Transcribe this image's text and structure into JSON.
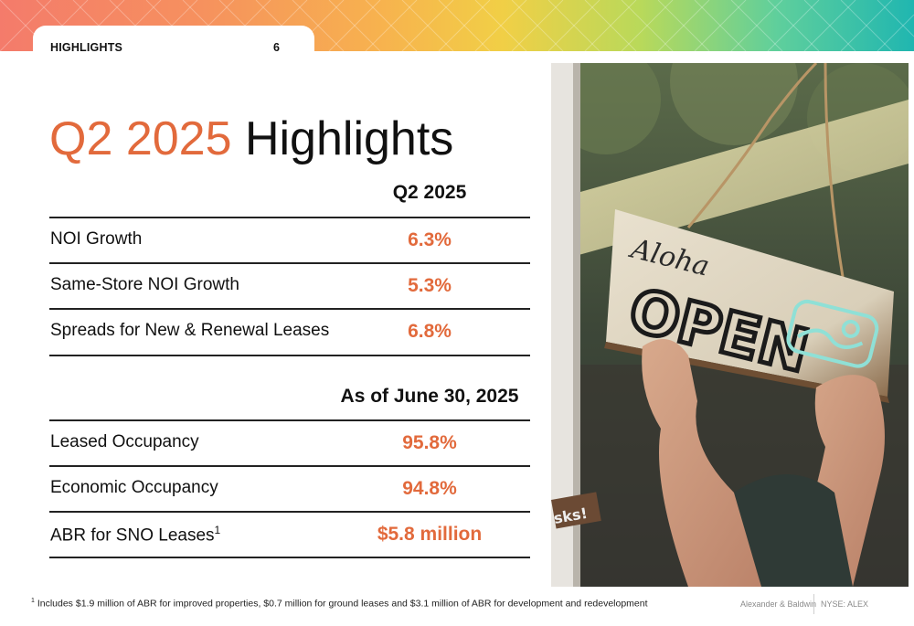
{
  "header": {
    "section_label": "HIGHLIGHTS",
    "page_number": "6",
    "colors": {
      "band_start": "#f47b6b",
      "band_mid": "#f1cf46",
      "band_end": "#20b6b0"
    }
  },
  "title": {
    "accent": "Q2 2025",
    "rest": " Highlights",
    "accent_color": "#e26a3c"
  },
  "quarter_table": {
    "column_header": "Q2 2025",
    "rows": [
      {
        "label": "NOI Growth",
        "value": "6.3%"
      },
      {
        "label": "Same-Store NOI Growth",
        "value": "5.3%"
      },
      {
        "label": "Spreads for New & Renewal Leases",
        "value": "6.8%"
      }
    ]
  },
  "asof_table": {
    "column_header": "As of June 30, 2025",
    "rows": [
      {
        "label": "Leased Occupancy",
        "value": "95.8%"
      },
      {
        "label": "Economic Occupancy",
        "value": "94.8%"
      },
      {
        "label": "ABR for SNO Leases",
        "label_sup": "1",
        "value": "$5.8 million"
      }
    ]
  },
  "photo": {
    "sign_script": "Aloha",
    "sign_main": "OPEN",
    "side_sign": "sks!"
  },
  "footnote": {
    "marker": "1",
    "text": " Includes $1.9 million of ABR for improved properties, $0.7 million for ground leases and $3.1 million of ABR for development and redevelopment"
  },
  "footer": {
    "brand": "Alexander & Baldwin",
    "ticker": "NYSE: ALEX"
  }
}
